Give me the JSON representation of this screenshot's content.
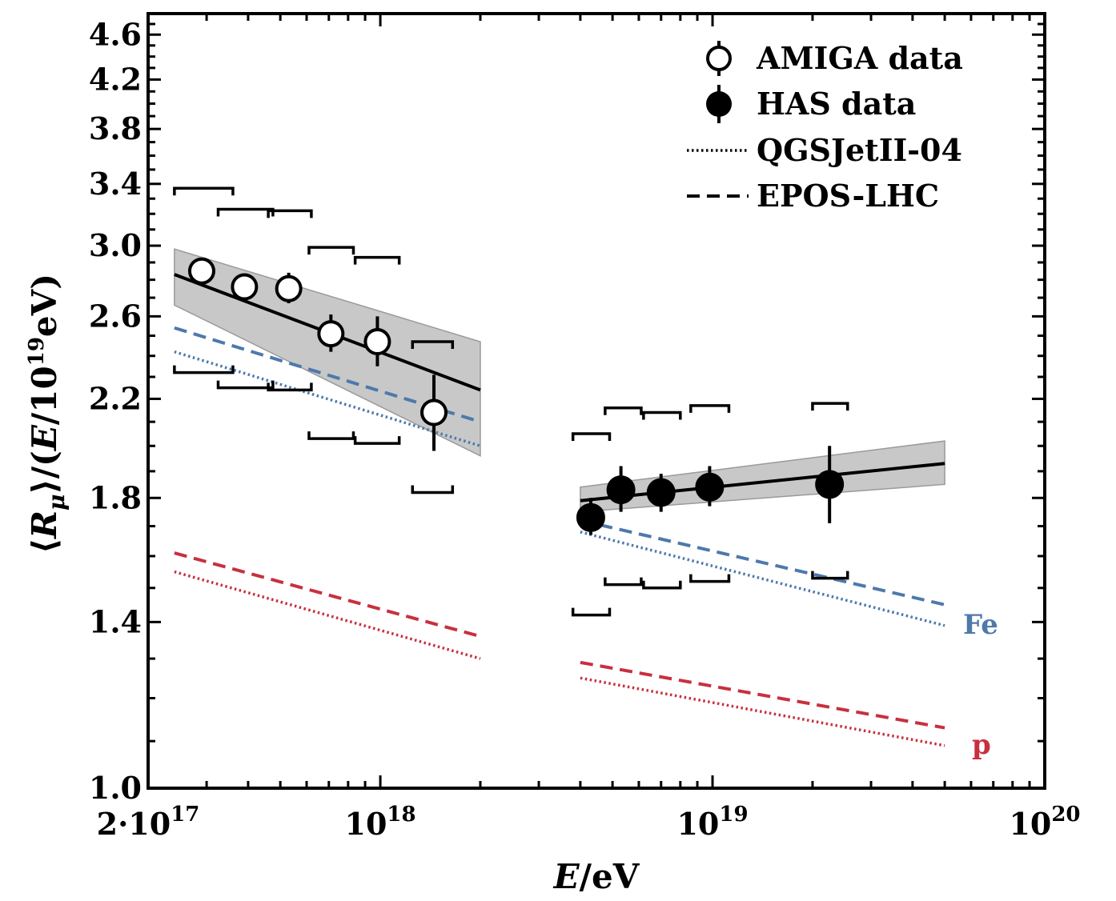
{
  "chart_data": {
    "type": "scatter",
    "title": "",
    "xlabel": "E/eV",
    "ylabel": "⟨Rμ⟩/(E/10¹⁹eV)",
    "xscale": "log",
    "yscale": "log",
    "xlim": [
      2e+17,
      1e+20
    ],
    "ylim": [
      1.0,
      4.8
    ],
    "x_ticks": [
      {
        "value": 2e+17,
        "base": "2·10",
        "exp": "17"
      },
      {
        "value": 1e+18,
        "base": "10",
        "exp": "18"
      },
      {
        "value": 1e+19,
        "base": "10",
        "exp": "19"
      },
      {
        "value": 1e+20,
        "base": "10",
        "exp": "20"
      }
    ],
    "y_ticks": [
      {
        "value": 1.0,
        "label": "1.0"
      },
      {
        "value": 1.4,
        "label": "1.4"
      },
      {
        "value": 1.8,
        "label": "1.8"
      },
      {
        "value": 2.2,
        "label": "2.2"
      },
      {
        "value": 2.6,
        "label": "2.6"
      },
      {
        "value": 3.0,
        "label": "3.0"
      },
      {
        "value": 3.4,
        "label": "3.4"
      },
      {
        "value": 3.8,
        "label": "3.8"
      },
      {
        "value": 4.2,
        "label": "4.2"
      },
      {
        "value": 4.6,
        "label": "4.6"
      }
    ],
    "legend": {
      "position": "top-right",
      "entries": [
        {
          "label": "AMIGA data",
          "marker": "open-circle"
        },
        {
          "label": "HAS data",
          "marker": "filled-circle"
        },
        {
          "label": "QGSJetII-04",
          "style": "dotted"
        },
        {
          "label": "EPOS-LHC",
          "style": "dashed"
        }
      ]
    },
    "series": [
      {
        "name": "AMIGA data",
        "marker": "open",
        "points": [
          {
            "x": 2.9e+17,
            "y": 2.85,
            "yerr_lo": 2.79,
            "yerr_hi": 2.92,
            "sys_lo": 2.32,
            "sys_hi": 3.37,
            "sys_xl": 2.4e+17,
            "sys_xr": 3.6e+17
          },
          {
            "x": 3.9e+17,
            "y": 2.76,
            "yerr_lo": 2.7,
            "yerr_hi": 2.82,
            "sys_lo": 2.25,
            "sys_hi": 3.23,
            "sys_xl": 3.25e+17,
            "sys_xr": 4.75e+17
          },
          {
            "x": 5.3e+17,
            "y": 2.75,
            "yerr_lo": 2.67,
            "yerr_hi": 2.84,
            "sys_lo": 2.24,
            "sys_hi": 3.22,
            "sys_xl": 4.6e+17,
            "sys_xr": 6.2e+17
          },
          {
            "x": 7.1e+17,
            "y": 2.51,
            "yerr_lo": 2.42,
            "yerr_hi": 2.61,
            "sys_lo": 2.03,
            "sys_hi": 2.99,
            "sys_xl": 6.1e+17,
            "sys_xr": 8.3e+17
          },
          {
            "x": 9.8e+17,
            "y": 2.47,
            "yerr_lo": 2.35,
            "yerr_hi": 2.6,
            "sys_lo": 2.01,
            "sys_hi": 2.93,
            "sys_xl": 8.4e+17,
            "sys_xr": 1.14e+18
          },
          {
            "x": 1.45e+18,
            "y": 2.14,
            "yerr_lo": 1.98,
            "yerr_hi": 2.31,
            "sys_lo": 1.82,
            "sys_hi": 2.47,
            "sys_xl": 1.25e+18,
            "sys_xr": 1.65e+18
          }
        ]
      },
      {
        "name": "HAS data",
        "marker": "filled",
        "points": [
          {
            "x": 4.3e+18,
            "y": 1.73,
            "yerr_lo": 1.67,
            "yerr_hi": 1.8,
            "sys_lo": 1.42,
            "sys_hi": 2.05,
            "sys_xl": 3.8e+18,
            "sys_xr": 4.9e+18
          },
          {
            "x": 5.3e+18,
            "y": 1.83,
            "yerr_lo": 1.75,
            "yerr_hi": 1.92,
            "sys_lo": 1.51,
            "sys_hi": 2.16,
            "sys_xl": 4.75e+18,
            "sys_xr": 6.1e+18
          },
          {
            "x": 7e+18,
            "y": 1.82,
            "yerr_lo": 1.75,
            "yerr_hi": 1.89,
            "sys_lo": 1.5,
            "sys_hi": 2.14,
            "sys_xl": 6.2e+18,
            "sys_xr": 8e+18
          },
          {
            "x": 9.8e+18,
            "y": 1.84,
            "yerr_lo": 1.77,
            "yerr_hi": 1.92,
            "sys_lo": 1.52,
            "sys_hi": 2.17,
            "sys_xl": 8.6e+18,
            "sys_xr": 1.12e+19
          },
          {
            "x": 2.25e+19,
            "y": 1.85,
            "yerr_lo": 1.71,
            "yerr_hi": 2.0,
            "sys_lo": 1.53,
            "sys_hi": 2.18,
            "sys_xl": 2e+19,
            "sys_xr": 2.55e+19
          }
        ]
      }
    ],
    "fits": [
      {
        "name": "AMIGA fit",
        "x": [
          2.4e+17,
          2e+18
        ],
        "y": [
          2.83,
          2.24
        ],
        "band_lo": [
          2.66,
          1.96
        ],
        "band_hi": [
          2.98,
          2.47
        ]
      },
      {
        "name": "HAS fit",
        "x": [
          4e+18,
          5e+19
        ],
        "y": [
          1.79,
          1.93
        ],
        "band_lo": [
          1.75,
          1.85
        ],
        "band_hi": [
          1.84,
          2.02
        ]
      }
    ],
    "models": [
      {
        "name": "Fe EPOS-LHC",
        "composition": "Fe",
        "style": "dashed",
        "color": "#4e79ab",
        "segments": [
          {
            "x": [
              2.4e+17,
              2e+18
            ],
            "y": [
              2.54,
              2.1
            ]
          },
          {
            "x": [
              4e+18,
              5e+19
            ],
            "y": [
              1.72,
              1.45
            ]
          }
        ]
      },
      {
        "name": "Fe QGSJetII-04",
        "composition": "Fe",
        "style": "dotted",
        "color": "#4e79ab",
        "segments": [
          {
            "x": [
              2.4e+17,
              2e+18
            ],
            "y": [
              2.42,
              2.0
            ]
          },
          {
            "x": [
              4e+18,
              5e+19
            ],
            "y": [
              1.68,
              1.39
            ]
          }
        ]
      },
      {
        "name": "p EPOS-LHC",
        "composition": "p",
        "style": "dashed",
        "color": "#c8303f",
        "segments": [
          {
            "x": [
              2.4e+17,
              2e+18
            ],
            "y": [
              1.61,
              1.36
            ]
          },
          {
            "x": [
              4e+18,
              5e+19
            ],
            "y": [
              1.29,
              1.13
            ]
          }
        ]
      },
      {
        "name": "p QGSJetII-04",
        "composition": "p",
        "style": "dotted",
        "color": "#c8303f",
        "segments": [
          {
            "x": [
              2.4e+17,
              2e+18
            ],
            "y": [
              1.55,
              1.3
            ]
          },
          {
            "x": [
              4e+18,
              5e+19
            ],
            "y": [
              1.25,
              1.09
            ]
          }
        ]
      }
    ],
    "series_labels": [
      {
        "text": "Fe",
        "color": "#4e79ab"
      },
      {
        "text": "p",
        "color": "#c8303f"
      }
    ]
  }
}
